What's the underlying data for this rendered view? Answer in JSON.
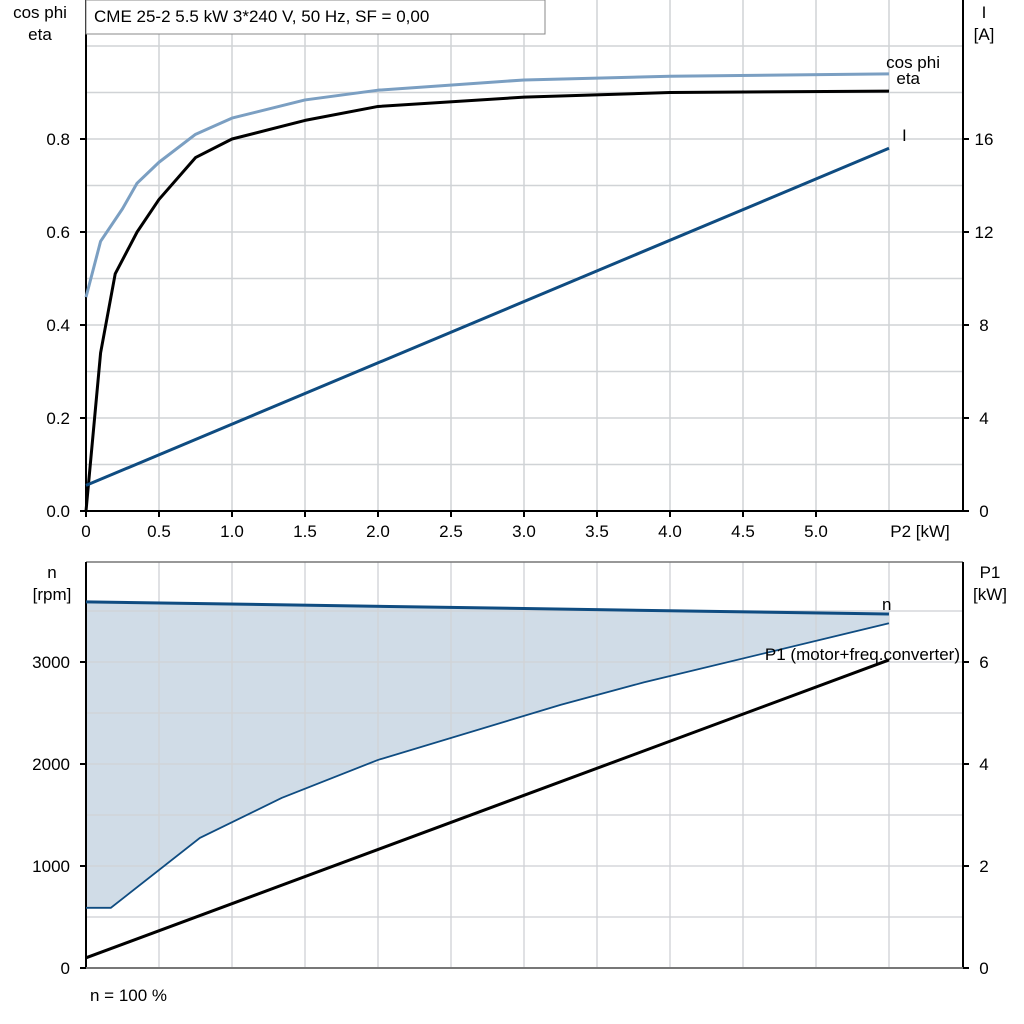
{
  "colors": {
    "cos_phi": "#7b9fc2",
    "eta": "#000000",
    "I": "#0f4c81",
    "n": "#0f4c81",
    "P1": "#000000",
    "fill": "#d0dce7",
    "grid": "#d0d3d6"
  },
  "chart_data": [
    {
      "type": "line",
      "title": "CME 25-2   5.5 kW   3*240 V, 50 Hz, SF = 0,00",
      "xlabel": "P2 [kW]",
      "ylabel_left": [
        "cos phi",
        "eta"
      ],
      "ylabel_right": [
        "I",
        "[A]"
      ],
      "xlim": [
        0,
        6
      ],
      "ylim_left": [
        0,
        1.1
      ],
      "ylim_right": [
        0,
        22
      ],
      "grid": true,
      "xticks": [
        "0",
        "0.5",
        "1.0",
        "1.5",
        "2.0",
        "2.5",
        "3.0",
        "3.5",
        "4.0",
        "4.5",
        "5.0"
      ],
      "yticks_left": [
        "0.0",
        "0.2",
        "0.4",
        "0.6",
        "0.8"
      ],
      "yticks_right": [
        "0",
        "4",
        "8",
        "12",
        "16"
      ],
      "series": [
        {
          "name": "cos phi",
          "axis": "left",
          "x": [
            0,
            0.1,
            0.25,
            0.35,
            0.5,
            0.75,
            1.0,
            1.5,
            2.0,
            3.0,
            4.0,
            5.5
          ],
          "y": [
            0.46,
            0.58,
            0.65,
            0.705,
            0.75,
            0.81,
            0.845,
            0.884,
            0.905,
            0.927,
            0.935,
            0.94
          ]
        },
        {
          "name": "eta",
          "axis": "left",
          "x": [
            0,
            0.1,
            0.2,
            0.35,
            0.5,
            0.75,
            1.0,
            1.5,
            2.0,
            3.0,
            4.0,
            5.5
          ],
          "y": [
            0,
            0.34,
            0.51,
            0.6,
            0.67,
            0.76,
            0.8,
            0.84,
            0.87,
            0.89,
            0.9,
            0.903
          ]
        },
        {
          "name": "I",
          "axis": "right",
          "x": [
            0,
            5.5
          ],
          "y": [
            1.1,
            15.6
          ]
        }
      ]
    },
    {
      "type": "area",
      "xlim": [
        0,
        6
      ],
      "ylim_left": [
        0,
        3980
      ],
      "ylim_right": [
        0,
        7.96
      ],
      "grid": true,
      "ylabel_left": [
        "n",
        "[rpm]"
      ],
      "ylabel_right": [
        "P1",
        "[kW]"
      ],
      "yticks_left": [
        "0",
        "1000",
        "2000",
        "3000"
      ],
      "yticks_right": [
        "0",
        "2",
        "4",
        "6"
      ],
      "note": "n = 100 %",
      "series": [
        {
          "name": "n",
          "axis": "left",
          "x": [
            0,
            5.5
          ],
          "y": [
            3590,
            3470
          ]
        },
        {
          "axis": "left",
          "x": [
            0,
            0.17,
            0.78,
            1.34,
            2.0,
            3.25,
            3.82,
            5.5
          ],
          "y": [
            590,
            590,
            1275,
            1667,
            2040,
            2580,
            2800,
            3380
          ]
        },
        {
          "name": "P1 (motor+freq.converter)",
          "axis": "right",
          "x": [
            0,
            5.5
          ],
          "y": [
            0.2,
            6.04
          ]
        }
      ]
    }
  ]
}
